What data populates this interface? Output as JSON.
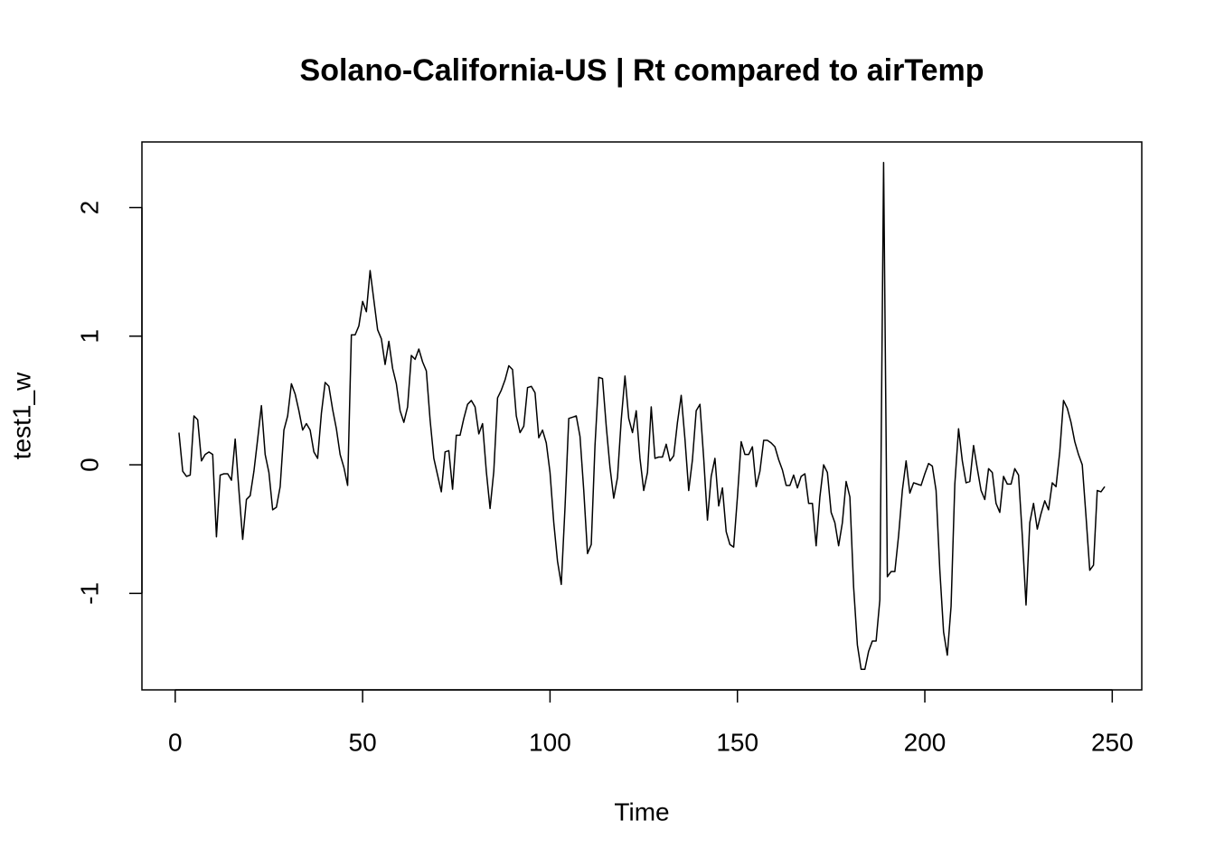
{
  "chart_data": {
    "type": "line",
    "title": "Solano-California-US | Rt compared to airTemp",
    "xlabel": "Time",
    "ylabel": "test1_w",
    "color": "#000000",
    "xlim": [
      -8.88,
      257.88
    ],
    "ylim": [
      -1.75,
      2.51
    ],
    "xticks": [
      0,
      50,
      100,
      150,
      200,
      250
    ],
    "yticks": [
      -1,
      0,
      1,
      2
    ],
    "x": [
      1,
      2,
      3,
      4,
      5,
      6,
      7,
      8,
      9,
      10,
      11,
      12,
      13,
      14,
      15,
      16,
      17,
      18,
      19,
      20,
      21,
      22,
      23,
      24,
      25,
      26,
      27,
      28,
      29,
      30,
      31,
      32,
      33,
      34,
      35,
      36,
      37,
      38,
      39,
      40,
      41,
      42,
      43,
      44,
      45,
      46,
      47,
      48,
      49,
      50,
      51,
      52,
      53,
      54,
      55,
      56,
      57,
      58,
      59,
      60,
      61,
      62,
      63,
      64,
      65,
      66,
      67,
      68,
      69,
      70,
      71,
      72,
      73,
      74,
      75,
      76,
      77,
      78,
      79,
      80,
      81,
      82,
      83,
      84,
      85,
      86,
      87,
      88,
      89,
      90,
      91,
      92,
      93,
      94,
      95,
      96,
      97,
      98,
      99,
      100,
      101,
      102,
      103,
      104,
      105,
      106,
      107,
      108,
      109,
      110,
      111,
      112,
      113,
      114,
      115,
      116,
      117,
      118,
      119,
      120,
      121,
      122,
      123,
      124,
      125,
      126,
      127,
      128,
      129,
      130,
      131,
      132,
      133,
      134,
      135,
      136,
      137,
      138,
      139,
      140,
      141,
      142,
      143,
      144,
      145,
      146,
      147,
      148,
      149,
      150,
      151,
      152,
      153,
      154,
      155,
      156,
      157,
      158,
      159,
      160,
      161,
      162,
      163,
      164,
      165,
      166,
      167,
      168,
      169,
      170,
      171,
      172,
      173,
      174,
      175,
      176,
      177,
      178,
      179,
      180,
      181,
      182,
      183,
      184,
      185,
      186,
      187,
      188,
      189,
      190,
      191,
      192,
      193,
      194,
      195,
      196,
      197,
      198,
      199,
      200,
      201,
      202,
      203,
      204,
      205,
      206,
      207,
      208,
      209,
      210,
      211,
      212,
      213,
      214,
      215,
      216,
      217,
      218,
      219,
      220,
      221,
      222,
      223,
      224,
      225,
      226,
      227,
      228,
      229,
      230,
      231,
      232,
      233,
      234,
      235,
      236,
      237,
      238,
      239,
      240,
      241,
      242,
      243,
      244,
      245,
      246,
      247,
      248
    ],
    "values": [
      0.25,
      -0.05,
      -0.09,
      -0.08,
      0.38,
      0.35,
      0.03,
      0.08,
      0.1,
      0.08,
      -0.56,
      -0.08,
      -0.07,
      -0.07,
      -0.12,
      0.2,
      -0.2,
      -0.58,
      -0.27,
      -0.24,
      -0.05,
      0.2,
      0.46,
      0.08,
      -0.06,
      -0.35,
      -0.33,
      -0.17,
      0.27,
      0.38,
      0.63,
      0.55,
      0.42,
      0.27,
      0.32,
      0.27,
      0.1,
      0.05,
      0.4,
      0.64,
      0.61,
      0.43,
      0.28,
      0.08,
      -0.02,
      -0.16,
      1.01,
      1.01,
      1.08,
      1.27,
      1.19,
      1.51,
      1.28,
      1.05,
      0.98,
      0.78,
      0.96,
      0.75,
      0.63,
      0.42,
      0.33,
      0.45,
      0.85,
      0.82,
      0.9,
      0.8,
      0.73,
      0.35,
      0.05,
      -0.08,
      -0.21,
      0.1,
      0.11,
      -0.19,
      0.23,
      0.23,
      0.36,
      0.47,
      0.5,
      0.45,
      0.24,
      0.32,
      -0.05,
      -0.34,
      -0.05,
      0.52,
      0.58,
      0.66,
      0.77,
      0.74,
      0.38,
      0.25,
      0.3,
      0.6,
      0.61,
      0.56,
      0.21,
      0.27,
      0.17,
      -0.06,
      -0.45,
      -0.75,
      -0.93,
      -0.33,
      0.36,
      0.37,
      0.38,
      0.22,
      -0.2,
      -0.69,
      -0.62,
      0.15,
      0.68,
      0.67,
      0.3,
      -0.02,
      -0.26,
      -0.1,
      0.35,
      0.69,
      0.36,
      0.25,
      0.42,
      0.05,
      -0.2,
      -0.06,
      0.45,
      0.05,
      0.06,
      0.06,
      0.16,
      0.03,
      0.07,
      0.33,
      0.54,
      0.2,
      -0.2,
      0.04,
      0.42,
      0.47,
      0.05,
      -0.43,
      -0.09,
      0.05,
      -0.32,
      -0.18,
      -0.52,
      -0.62,
      -0.64,
      -0.25,
      0.18,
      0.08,
      0.08,
      0.14,
      -0.17,
      -0.05,
      0.19,
      0.19,
      0.17,
      0.14,
      0.04,
      -0.04,
      -0.16,
      -0.16,
      -0.08,
      -0.18,
      -0.09,
      -0.07,
      -0.3,
      -0.3,
      -0.63,
      -0.25,
      0.0,
      -0.06,
      -0.37,
      -0.45,
      -0.63,
      -0.45,
      -0.13,
      -0.25,
      -0.95,
      -1.4,
      -1.59,
      -1.59,
      -1.45,
      -1.37,
      -1.37,
      -1.05,
      2.35,
      -0.87,
      -0.83,
      -0.83,
      -0.55,
      -0.2,
      0.03,
      -0.22,
      -0.14,
      -0.15,
      -0.16,
      -0.07,
      0.01,
      -0.01,
      -0.2,
      -0.82,
      -1.3,
      -1.48,
      -1.1,
      -0.15,
      0.28,
      0.03,
      -0.14,
      -0.13,
      0.15,
      -0.03,
      -0.2,
      -0.27,
      -0.03,
      -0.06,
      -0.3,
      -0.37,
      -0.09,
      -0.15,
      -0.15,
      -0.03,
      -0.08,
      -0.55,
      -1.09,
      -0.45,
      -0.3,
      -0.5,
      -0.38,
      -0.28,
      -0.35,
      -0.14,
      -0.17,
      0.1,
      0.5,
      0.44,
      0.33,
      0.18,
      0.08,
      0.0,
      -0.4,
      -0.82,
      -0.78,
      -0.2,
      -0.21,
      -0.17
    ]
  }
}
